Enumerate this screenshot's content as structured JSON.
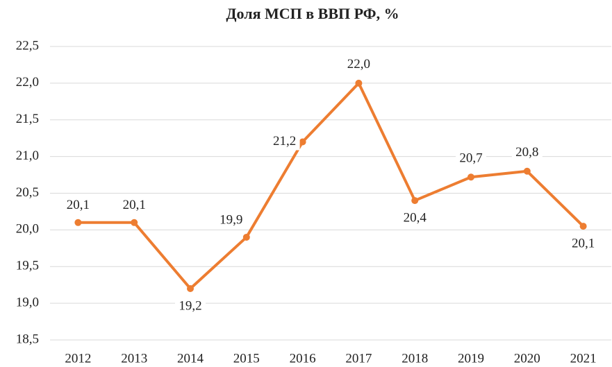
{
  "chart_data": {
    "type": "line",
    "title": "Доля МСП в ВВП РФ, %",
    "categories": [
      "2012",
      "2013",
      "2014",
      "2015",
      "2016",
      "2017",
      "2018",
      "2019",
      "2020",
      "2021"
    ],
    "series": [
      {
        "name": "Доля МСП в ВВП РФ",
        "color": "#ed7d31",
        "values": [
          20.1,
          20.1,
          19.2,
          19.9,
          21.2,
          22.0,
          20.4,
          20.72,
          20.8,
          20.05
        ],
        "value_labels": [
          "20,1",
          "20,1",
          "19,2",
          "19,9",
          "21,2",
          "22,0",
          "20,4",
          "20,7",
          "20,8",
          "20,1"
        ]
      }
    ],
    "ylim": [
      18.5,
      22.5
    ],
    "yticks": [
      {
        "value": 18.5,
        "label": "18,5"
      },
      {
        "value": 19.0,
        "label": "19,0"
      },
      {
        "value": 19.5,
        "label": "19,5"
      },
      {
        "value": 20.0,
        "label": "20,0"
      },
      {
        "value": 20.5,
        "label": "20,5"
      },
      {
        "value": 21.0,
        "label": "21,0"
      },
      {
        "value": 21.5,
        "label": "21,5"
      },
      {
        "value": 22.0,
        "label": "22,0"
      },
      {
        "value": 22.5,
        "label": "22,5"
      }
    ],
    "grid": true
  }
}
